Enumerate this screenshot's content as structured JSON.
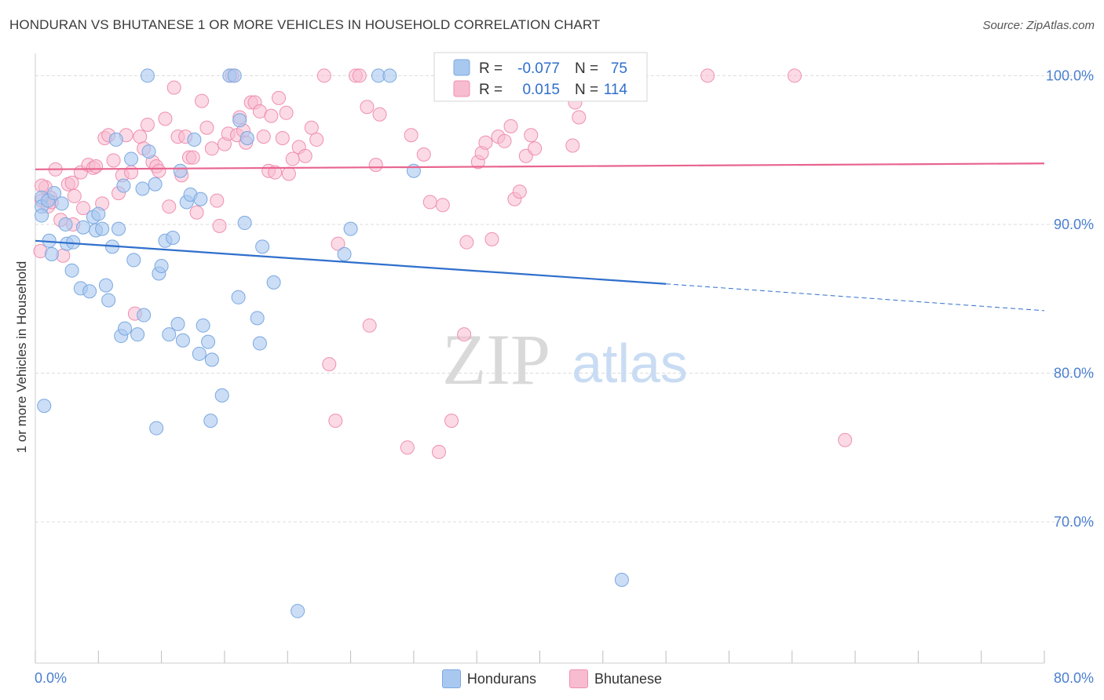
{
  "header": {
    "title": "HONDURAN VS BHUTANESE 1 OR MORE VEHICLES IN HOUSEHOLD CORRELATION CHART",
    "source": "Source: ZipAtlas.com"
  },
  "watermark": {
    "zip": "ZIP",
    "atlas": "atlas"
  },
  "colors": {
    "blue_fill": "#a9c8f0",
    "blue_stroke": "#7aa8e0",
    "blue_line": "#2f6fcc",
    "pink_fill": "#f7bcd0",
    "pink_stroke": "#f08fb0",
    "pink_line": "#e8648e",
    "axis_text": "#4a7fd0",
    "grid": "#dcdcdc"
  },
  "legend": {
    "rows": [
      {
        "r_label": "R =",
        "r_value": "-0.077",
        "n_label": "N =",
        "n_value": "75"
      },
      {
        "r_label": "R =",
        "r_value": "0.015",
        "n_label": "N =",
        "n_value": "114"
      }
    ],
    "bottom": [
      "Hondurans",
      "Bhutanese"
    ]
  },
  "chart_data": {
    "type": "scatter",
    "title": "HONDURAN VS BHUTANESE 1 OR MORE VEHICLES IN HOUSEHOLD CORRELATION CHART",
    "xlabel": "",
    "ylabel": "1 or more Vehicles in Household",
    "xlim": [
      0,
      80
    ],
    "ylim": [
      60.5,
      101.5
    ],
    "x_tick_labels": [
      "0.0%",
      "80.0%"
    ],
    "y_ticks": [
      70,
      80,
      90,
      100
    ],
    "y_tick_labels": [
      "70.0%",
      "80.0%",
      "90.0%",
      "100.0%"
    ],
    "grid": true,
    "series": [
      {
        "name": "Hondurans",
        "color": "#a9c8f0",
        "trend": {
          "x0": 0,
          "y0": 88.9,
          "x1": 50,
          "y1": 86.0,
          "dash_to_x": 80,
          "dash_to_y": 84.2
        },
        "points": [
          [
            0.5,
            91.8
          ],
          [
            0.5,
            91.2
          ],
          [
            0.5,
            90.6
          ],
          [
            0.7,
            77.8
          ],
          [
            1.0,
            91.6
          ],
          [
            1.1,
            88.9
          ],
          [
            1.3,
            88.0
          ],
          [
            1.5,
            92.1
          ],
          [
            2.1,
            91.4
          ],
          [
            2.4,
            90.0
          ],
          [
            2.5,
            88.7
          ],
          [
            2.9,
            86.9
          ],
          [
            3.0,
            88.8
          ],
          [
            3.6,
            85.7
          ],
          [
            3.8,
            89.8
          ],
          [
            4.3,
            85.5
          ],
          [
            4.6,
            90.5
          ],
          [
            4.8,
            89.6
          ],
          [
            5.0,
            90.7
          ],
          [
            5.3,
            89.7
          ],
          [
            5.6,
            85.9
          ],
          [
            5.8,
            84.9
          ],
          [
            6.1,
            88.5
          ],
          [
            6.4,
            95.7
          ],
          [
            6.6,
            89.7
          ],
          [
            6.8,
            82.5
          ],
          [
            7.0,
            92.6
          ],
          [
            7.1,
            83.0
          ],
          [
            7.6,
            94.4
          ],
          [
            7.8,
            87.6
          ],
          [
            8.1,
            82.6
          ],
          [
            8.5,
            92.4
          ],
          [
            8.6,
            83.9
          ],
          [
            8.9,
            100.0
          ],
          [
            9.0,
            94.9
          ],
          [
            9.5,
            92.7
          ],
          [
            9.6,
            76.3
          ],
          [
            9.8,
            86.7
          ],
          [
            10.0,
            87.2
          ],
          [
            10.3,
            88.9
          ],
          [
            10.6,
            82.6
          ],
          [
            10.9,
            89.1
          ],
          [
            11.3,
            83.3
          ],
          [
            11.5,
            93.6
          ],
          [
            11.7,
            82.2
          ],
          [
            12.0,
            91.5
          ],
          [
            12.3,
            92.0
          ],
          [
            12.6,
            95.7
          ],
          [
            13.0,
            81.3
          ],
          [
            13.1,
            91.7
          ],
          [
            13.3,
            83.2
          ],
          [
            13.7,
            82.1
          ],
          [
            13.9,
            76.8
          ],
          [
            14.0,
            80.9
          ],
          [
            14.8,
            78.5
          ],
          [
            15.4,
            100.0
          ],
          [
            15.8,
            100.0
          ],
          [
            16.1,
            85.1
          ],
          [
            16.2,
            97.0
          ],
          [
            16.6,
            90.1
          ],
          [
            16.8,
            95.8
          ],
          [
            17.6,
            83.7
          ],
          [
            17.8,
            82.0
          ],
          [
            18.0,
            88.5
          ],
          [
            18.9,
            86.1
          ],
          [
            20.8,
            64.0
          ],
          [
            24.5,
            88.0
          ],
          [
            25.0,
            89.7
          ],
          [
            27.2,
            100.0
          ],
          [
            28.1,
            100.0
          ],
          [
            30.0,
            93.6
          ],
          [
            46.5,
            66.1
          ]
        ]
      },
      {
        "name": "Bhutanese",
        "color": "#f7bcd0",
        "trend": {
          "x0": 0,
          "y0": 93.7,
          "x1": 80,
          "y1": 94.1
        },
        "points": [
          [
            0.4,
            88.2
          ],
          [
            0.5,
            91.6
          ],
          [
            0.8,
            92.5
          ],
          [
            1.0,
            91.2
          ],
          [
            1.2,
            91.8
          ],
          [
            1.6,
            93.7
          ],
          [
            2.0,
            90.3
          ],
          [
            2.2,
            87.9
          ],
          [
            2.6,
            92.7
          ],
          [
            2.9,
            92.8
          ],
          [
            3.1,
            91.9
          ],
          [
            3.6,
            93.5
          ],
          [
            3.8,
            91.1
          ],
          [
            4.2,
            94.0
          ],
          [
            4.6,
            93.8
          ],
          [
            4.8,
            93.9
          ],
          [
            5.3,
            91.4
          ],
          [
            5.5,
            95.8
          ],
          [
            5.8,
            96.0
          ],
          [
            6.2,
            94.3
          ],
          [
            6.6,
            92.1
          ],
          [
            6.9,
            93.3
          ],
          [
            7.2,
            96.0
          ],
          [
            7.6,
            93.5
          ],
          [
            7.9,
            84.0
          ],
          [
            8.3,
            95.9
          ],
          [
            8.6,
            95.1
          ],
          [
            8.9,
            96.7
          ],
          [
            9.3,
            94.2
          ],
          [
            9.6,
            93.9
          ],
          [
            9.8,
            93.6
          ],
          [
            10.3,
            97.1
          ],
          [
            10.6,
            91.2
          ],
          [
            11.0,
            99.2
          ],
          [
            11.3,
            95.9
          ],
          [
            11.6,
            93.3
          ],
          [
            11.9,
            95.9
          ],
          [
            12.2,
            94.5
          ],
          [
            12.5,
            94.5
          ],
          [
            12.8,
            90.8
          ],
          [
            13.2,
            98.3
          ],
          [
            13.6,
            96.5
          ],
          [
            14.0,
            95.1
          ],
          [
            14.4,
            91.6
          ],
          [
            14.6,
            89.9
          ],
          [
            15.0,
            95.4
          ],
          [
            15.3,
            96.1
          ],
          [
            15.6,
            100.0
          ],
          [
            16.0,
            96.0
          ],
          [
            16.2,
            97.2
          ],
          [
            16.5,
            96.3
          ],
          [
            16.7,
            95.5
          ],
          [
            17.1,
            98.2
          ],
          [
            17.4,
            98.2
          ],
          [
            17.8,
            97.6
          ],
          [
            18.1,
            95.9
          ],
          [
            18.5,
            93.6
          ],
          [
            18.7,
            97.3
          ],
          [
            19.0,
            93.5
          ],
          [
            19.3,
            98.5
          ],
          [
            19.6,
            95.8
          ],
          [
            19.9,
            97.5
          ],
          [
            20.1,
            93.4
          ],
          [
            20.4,
            94.4
          ],
          [
            20.9,
            95.2
          ],
          [
            21.4,
            94.6
          ],
          [
            21.9,
            96.5
          ],
          [
            22.3,
            95.7
          ],
          [
            22.9,
            100.0
          ],
          [
            23.3,
            80.6
          ],
          [
            23.8,
            76.8
          ],
          [
            24.0,
            88.7
          ],
          [
            25.4,
            100.0
          ],
          [
            25.7,
            100.0
          ],
          [
            26.3,
            97.9
          ],
          [
            26.5,
            83.2
          ],
          [
            27.0,
            94.0
          ],
          [
            27.3,
            97.4
          ],
          [
            29.5,
            75.0
          ],
          [
            29.8,
            96.0
          ],
          [
            30.8,
            94.7
          ],
          [
            31.3,
            91.5
          ],
          [
            32.0,
            74.7
          ],
          [
            32.3,
            91.3
          ],
          [
            33.0,
            76.8
          ],
          [
            34.0,
            82.6
          ],
          [
            34.2,
            88.8
          ],
          [
            35.1,
            94.2
          ],
          [
            35.4,
            94.8
          ],
          [
            35.7,
            95.5
          ],
          [
            36.2,
            89.0
          ],
          [
            36.7,
            95.9
          ],
          [
            37.2,
            95.6
          ],
          [
            37.7,
            96.6
          ],
          [
            38.0,
            91.7
          ],
          [
            38.4,
            92.2
          ],
          [
            38.9,
            94.6
          ],
          [
            39.3,
            96.0
          ],
          [
            39.6,
            95.1
          ],
          [
            42.6,
            95.3
          ],
          [
            42.8,
            98.2
          ],
          [
            43.1,
            97.2
          ],
          [
            53.3,
            100.0
          ],
          [
            60.2,
            100.0
          ],
          [
            64.2,
            75.5
          ],
          [
            0.5,
            92.6
          ],
          [
            1.3,
            91.5
          ],
          [
            3.0,
            90.0
          ]
        ]
      }
    ]
  }
}
